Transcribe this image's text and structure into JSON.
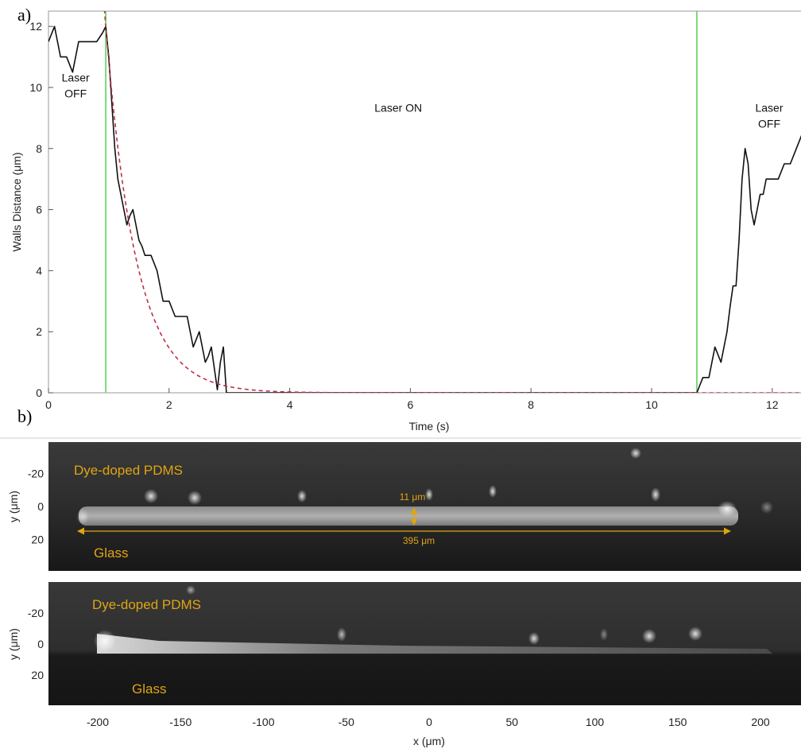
{
  "figure": {
    "panel_a_label": "a)",
    "panel_b_label": "b)"
  },
  "chart_data": [
    {
      "type": "line",
      "xlabel": "Time (s)",
      "ylabel": "Walls Distance (μm)",
      "xlim": [
        0,
        12.8
      ],
      "ylim": [
        0,
        12.5
      ],
      "xticks": [
        0,
        2,
        4,
        6,
        8,
        10,
        12
      ],
      "yticks": [
        0,
        2,
        4,
        6,
        8,
        10,
        12
      ],
      "grid": false,
      "annotations": [
        {
          "text": [
            "Laser",
            "OFF"
          ],
          "x": 0.45,
          "y": 10.2
        },
        {
          "text": [
            "Laser ON"
          ],
          "x": 5.8,
          "y": 9.2
        },
        {
          "text": [
            "Laser",
            "OFF"
          ],
          "x": 11.95,
          "y": 9.2
        }
      ],
      "vlines": [
        {
          "x": 0.95,
          "color": "#5ad65a"
        },
        {
          "x": 10.75,
          "color": "#5ad65a"
        }
      ],
      "series": [
        {
          "style": "solid",
          "color": "#111111",
          "x": [
            0,
            0.1,
            0.2,
            0.3,
            0.4,
            0.5,
            0.55,
            0.6,
            0.7,
            0.8,
            0.9,
            0.95,
            1.0,
            1.05,
            1.1,
            1.15,
            1.2,
            1.25,
            1.3,
            1.35,
            1.4,
            1.5,
            1.55,
            1.6,
            1.65,
            1.7,
            1.8,
            1.9,
            2.0,
            2.1,
            2.2,
            2.3,
            2.35,
            2.4,
            2.5,
            2.55,
            2.6,
            2.65,
            2.7,
            2.8,
            2.85,
            2.9,
            2.95,
            3.0,
            3.05,
            3.1,
            3.15,
            3.2,
            3.3,
            4.0,
            6.0,
            8.0,
            10.0,
            10.75,
            10.85,
            10.95,
            11.05,
            11.15,
            11.25,
            11.3,
            11.35,
            11.4,
            11.45,
            11.5,
            11.55,
            11.6,
            11.65,
            11.7,
            11.75,
            11.8,
            11.85,
            11.9,
            11.95,
            12.0,
            12.1,
            12.2,
            12.3,
            12.4,
            12.5,
            12.6,
            12.7,
            12.8
          ],
          "y": [
            11.5,
            12.0,
            11.0,
            11.0,
            10.5,
            11.5,
            11.5,
            11.5,
            11.5,
            11.5,
            11.8,
            12.0,
            11.0,
            9.5,
            8.0,
            7.0,
            6.5,
            6.0,
            5.5,
            5.8,
            6.0,
            5.0,
            4.8,
            4.5,
            4.5,
            4.5,
            4.0,
            3.0,
            3.0,
            2.5,
            2.5,
            2.5,
            2.0,
            1.5,
            2.0,
            1.5,
            1.0,
            1.2,
            1.5,
            0.1,
            1.0,
            1.5,
            0.0,
            0.0,
            0.0,
            0.0,
            0.0,
            0.0,
            0.0,
            0.0,
            0.0,
            0.0,
            0.0,
            0.0,
            0.5,
            0.5,
            1.5,
            1.0,
            2.0,
            2.8,
            3.5,
            3.5,
            5.0,
            7.0,
            8.0,
            7.5,
            6.0,
            5.5,
            6.0,
            6.5,
            6.5,
            7.0,
            7.0,
            7.0,
            7.0,
            7.5,
            7.5,
            8.0,
            8.5,
            8.8,
            9.0,
            9.3
          ]
        },
        {
          "style": "dashed",
          "color": "#c0304a",
          "model": "exponential decay",
          "x0": 0.95,
          "y0": 12.0,
          "tau": 0.5,
          "x_end": 12.8
        }
      ]
    },
    {
      "type": "image",
      "xlabel": "x (μm)",
      "ylabel": "y (μm)",
      "xlim": [
        -230,
        225
      ],
      "ylim": [
        37,
        -37
      ],
      "xticks": [
        -200,
        -150,
        -100,
        -50,
        0,
        50,
        100,
        150,
        200
      ],
      "yticks": [
        -20,
        0,
        20
      ],
      "panels": [
        {
          "labels": {
            "top": "Dye-doped PDMS",
            "bottom": "Glass"
          },
          "height_annotation": "11 μm",
          "length_annotation": "395 μm",
          "channel": {
            "x_start": -215,
            "x_end": 180,
            "y_center": 0
          }
        },
        {
          "labels": {
            "top": "Dye-doped PDMS",
            "bottom": "Glass"
          },
          "channel": {
            "x_start": -200,
            "x_end": 205,
            "y_center": 0
          }
        }
      ]
    }
  ]
}
